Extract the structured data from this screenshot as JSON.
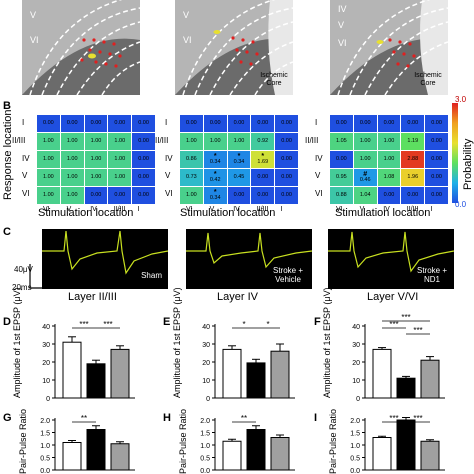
{
  "panels": {
    "A": "",
    "B": "B",
    "C": "C",
    "D": "D",
    "E": "E",
    "F": "F",
    "G": "G",
    "H": "H",
    "I": "I"
  },
  "micrographs": [
    {
      "layers": [
        "V",
        "VI"
      ],
      "core_label": ""
    },
    {
      "layers": [
        "V",
        "VI"
      ],
      "core_label": "Ischemic Core"
    },
    {
      "layers": [
        "IV",
        "V",
        "VI"
      ],
      "core_label": "Ischemic Core"
    }
  ],
  "heatmaps": {
    "row_labels": [
      "I",
      "II/III",
      "IV",
      "V",
      "VI"
    ],
    "col_labels": [
      "VI",
      "V",
      "IV",
      "II/III",
      "I"
    ],
    "y_label": "Response location",
    "x_label": "Stimulation location",
    "colorbar": {
      "label": "Probability",
      "max": "3.0",
      "min": "0.0",
      "colors": [
        "#1f4fe0",
        "#1fb0e8",
        "#5ee05e",
        "#e8e030",
        "#f0a020",
        "#e02020"
      ]
    },
    "grids": [
      [
        [
          {
            "v": "0.00"
          },
          {
            "v": "0.00"
          },
          {
            "v": "0.00"
          },
          {
            "v": "0.00"
          },
          {
            "v": "0.00"
          }
        ],
        [
          {
            "v": "1.00"
          },
          {
            "v": "1.00"
          },
          {
            "v": "1.00"
          },
          {
            "v": "1.00"
          },
          {
            "v": "0.00"
          }
        ],
        [
          {
            "v": "1.00"
          },
          {
            "v": "1.00"
          },
          {
            "v": "1.00"
          },
          {
            "v": "1.00"
          },
          {
            "v": "0.00"
          }
        ],
        [
          {
            "v": "1.00"
          },
          {
            "v": "1.00"
          },
          {
            "v": "1.00"
          },
          {
            "v": "1.00"
          },
          {
            "v": "0.00"
          }
        ],
        [
          {
            "v": "1.00"
          },
          {
            "v": "1.00"
          },
          {
            "v": "0.00"
          },
          {
            "v": "0.00"
          },
          {
            "v": "0.00"
          }
        ]
      ],
      [
        [
          {
            "v": "0.00"
          },
          {
            "v": "0.00"
          },
          {
            "v": "0.00"
          },
          {
            "v": "0.00"
          },
          {
            "v": "0.00"
          }
        ],
        [
          {
            "v": "1.00"
          },
          {
            "v": "1.00"
          },
          {
            "v": "1.00"
          },
          {
            "v": "0.92"
          },
          {
            "v": "0.00"
          }
        ],
        [
          {
            "v": "0.86"
          },
          {
            "v": "0.34",
            "m": "*"
          },
          {
            "v": "0.34",
            "m": "*"
          },
          {
            "v": "1.69",
            "m": "*"
          },
          {
            "v": "0.00"
          }
        ],
        [
          {
            "v": "0.73"
          },
          {
            "v": "0.42",
            "m": "*"
          },
          {
            "v": "0.45"
          },
          {
            "v": "0.00"
          },
          {
            "v": "0.00"
          }
        ],
        [
          {
            "v": "1.00"
          },
          {
            "v": "0.34",
            "m": "*"
          },
          {
            "v": "0.00"
          },
          {
            "v": "0.00"
          },
          {
            "v": "0.00"
          }
        ]
      ],
      [
        [
          {
            "v": "0.00"
          },
          {
            "v": "0.00"
          },
          {
            "v": "0.00"
          },
          {
            "v": "0.00"
          },
          {
            "v": "0.00"
          }
        ],
        [
          {
            "v": "1.05"
          },
          {
            "v": "1.00"
          },
          {
            "v": "1.00"
          },
          {
            "v": "1.19"
          },
          {
            "v": "0.00"
          }
        ],
        [
          {
            "v": "0.00"
          },
          {
            "v": "1.00"
          },
          {
            "v": "1.00"
          },
          {
            "v": "2.88"
          },
          {
            "v": "0.00"
          }
        ],
        [
          {
            "v": "0.95"
          },
          {
            "v": "0.46",
            "m": "#"
          },
          {
            "v": "1.08"
          },
          {
            "v": "1.96"
          },
          {
            "v": "0.00"
          }
        ],
        [
          {
            "v": "0.88"
          },
          {
            "v": "1.04"
          },
          {
            "v": "0.00"
          },
          {
            "v": "0.00"
          },
          {
            "v": "0.00"
          }
        ]
      ]
    ]
  },
  "traces": {
    "labels": [
      "Sham",
      "Stroke + Vehicle",
      "Stroke + ND1"
    ],
    "scale_v": "40μV",
    "scale_t": "20ms",
    "layers": [
      "Layer II/III",
      "Layer IV",
      "Layer V/VI"
    ]
  },
  "amplitude": {
    "ylabel": "Amplitude of 1st EPSP (μV)",
    "charts": [
      {
        "ticks": [
          "0",
          "10",
          "20",
          "30",
          "40"
        ],
        "sig": [
          "***",
          "***"
        ]
      },
      {
        "ticks": [
          "0",
          "10",
          "20",
          "30",
          "40"
        ],
        "sig": [
          "*",
          "*"
        ]
      },
      {
        "ticks": [
          "0",
          "10",
          "20",
          "30",
          "40"
        ],
        "sig": [
          "***",
          "***",
          "***"
        ]
      }
    ]
  },
  "ppr": {
    "ylabel": "Pair-Pulse Ratio",
    "charts": [
      {
        "ticks": [
          "0.0",
          "0.5",
          "1.0",
          "1.5",
          "2.0"
        ],
        "sig": [
          "**"
        ]
      },
      {
        "ticks": [
          "0.0",
          "0.5",
          "1.0",
          "1.5",
          "2.0"
        ],
        "sig": [
          "**"
        ]
      },
      {
        "ticks": [
          "0.0",
          "0.5",
          "1.0",
          "1.5",
          "2.0"
        ],
        "sig": [
          "***",
          "***"
        ]
      }
    ]
  },
  "chart_data": [
    {
      "type": "bar",
      "categories": [
        "Sham",
        "Stroke + Vehicle",
        "Stroke + ND1"
      ],
      "values": [
        31,
        19,
        27
      ],
      "errors": [
        3,
        2,
        2
      ],
      "ylabel": "Amplitude of 1st EPSP (μV)",
      "ylim": [
        0,
        40
      ]
    },
    {
      "type": "bar",
      "categories": [
        "Sham",
        "Stroke + Vehicle",
        "Stroke + ND1"
      ],
      "values": [
        27,
        19.5,
        26
      ],
      "errors": [
        2,
        2,
        4
      ],
      "ylabel": "Amplitude of 1st EPSP (μV)",
      "ylim": [
        0,
        40
      ]
    },
    {
      "type": "bar",
      "categories": [
        "Sham",
        "Stroke + Vehicle",
        "Stroke + ND1"
      ],
      "values": [
        27,
        11,
        21
      ],
      "errors": [
        1,
        1,
        2
      ],
      "ylabel": "Amplitude of 1st EPSP (μV)",
      "ylim": [
        0,
        40
      ]
    },
    {
      "type": "bar",
      "categories": [
        "Sham",
        "Stroke + Vehicle",
        "Stroke + ND1"
      ],
      "values": [
        1.1,
        1.62,
        1.05
      ],
      "errors": [
        0.08,
        0.15,
        0.08
      ],
      "ylabel": "Pair-Pulse Ratio",
      "ylim": [
        0,
        2.0
      ]
    },
    {
      "type": "bar",
      "categories": [
        "Sham",
        "Stroke + Vehicle",
        "Stroke + ND1"
      ],
      "values": [
        1.15,
        1.62,
        1.3
      ],
      "errors": [
        0.08,
        0.15,
        0.1
      ],
      "ylabel": "Pair-Pulse Ratio",
      "ylim": [
        0,
        2.0
      ]
    },
    {
      "type": "bar",
      "categories": [
        "Sham",
        "Stroke + Vehicle",
        "Stroke + ND1"
      ],
      "values": [
        1.3,
        2.0,
        1.15
      ],
      "errors": [
        0.05,
        0.1,
        0.06
      ],
      "ylabel": "Pair-Pulse Ratio",
      "ylim": [
        0,
        2.0
      ]
    }
  ]
}
